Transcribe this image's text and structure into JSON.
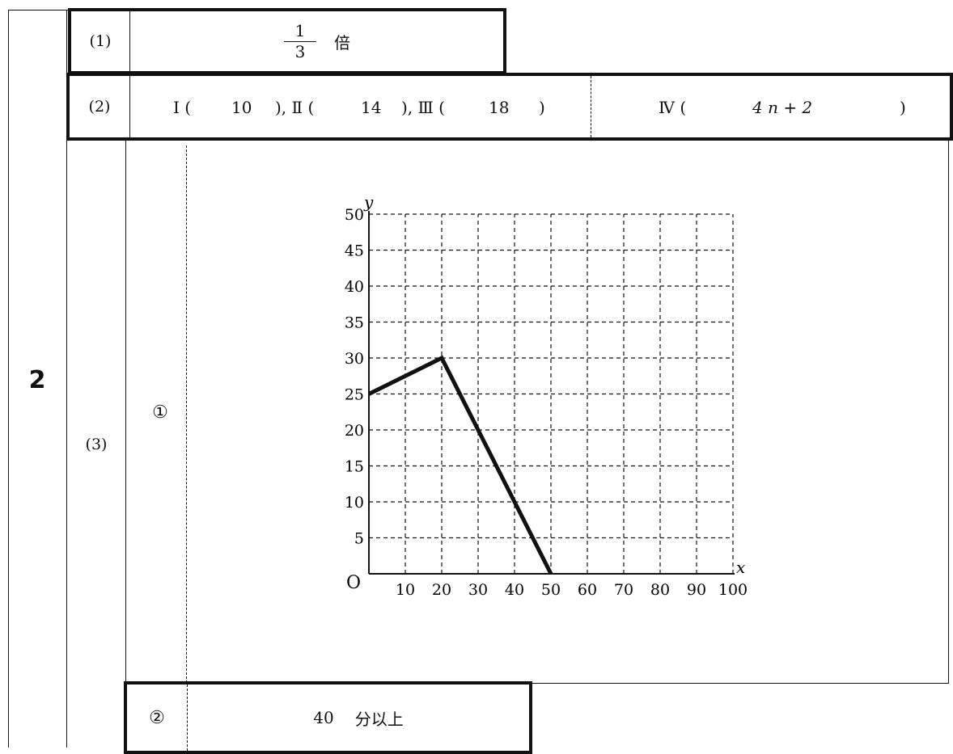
{
  "question_number": "2",
  "parts": {
    "p1": {
      "label": "(1)",
      "numerator": "1",
      "denominator": "3",
      "unit": "倍"
    },
    "p2": {
      "label": "(2)",
      "I_label": "Ⅰ (",
      "I_value": "10",
      "II_label": "), Ⅱ (",
      "II_value": "14",
      "III_label": "), Ⅲ (",
      "III_value": "18",
      "III_close": ")",
      "IV_label": "Ⅳ (",
      "IV_value": "4 n + 2",
      "IV_close": ")"
    },
    "p3": {
      "label": "(3)",
      "sub1": "①",
      "sub2": "②",
      "answer2_value": "40",
      "answer2_unit": "分以上"
    }
  },
  "chart_data": {
    "type": "line",
    "xlabel": "x",
    "ylabel": "y",
    "origin_label": "O",
    "xlim": [
      0,
      100
    ],
    "ylim": [
      0,
      50
    ],
    "x_ticks": [
      10,
      20,
      30,
      40,
      50,
      60,
      70,
      80,
      90,
      100
    ],
    "y_ticks": [
      5,
      10,
      15,
      20,
      25,
      30,
      35,
      40,
      45,
      50
    ],
    "grid": "dashed",
    "series": [
      {
        "x": [
          0,
          20,
          50
        ],
        "y": [
          25,
          30,
          0
        ]
      }
    ]
  }
}
